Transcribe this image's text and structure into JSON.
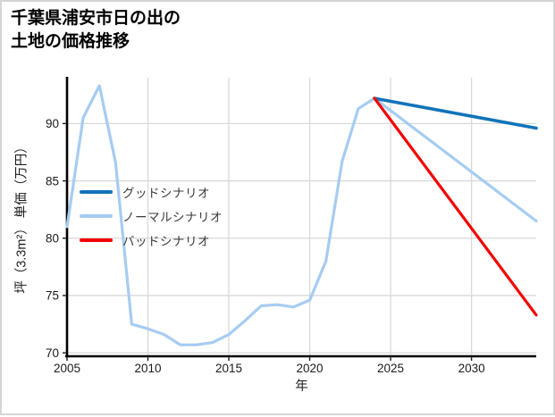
{
  "chart_data": {
    "type": "line",
    "title_lines": [
      "千葉県浦安市日の出の",
      "土地の価格推移"
    ],
    "xlabel": "年",
    "ylabel": "坪（3.3m²） 単価（万円）",
    "x_ticks": [
      2005,
      2010,
      2015,
      2020,
      2025,
      2030
    ],
    "y_ticks": [
      70,
      75,
      80,
      85,
      90
    ],
    "xlim": [
      2005,
      2034
    ],
    "ylim": [
      69.7,
      94.0
    ],
    "grid": true,
    "grid_color": "#d9d9d9",
    "axis_color": "#000000",
    "tick_label_color": "#1a1a1a",
    "legend_position": "center-left",
    "legend_text_color": "#3a3a3a",
    "series": [
      {
        "name": "グッドシナリオ",
        "color": "#1073b9",
        "width": 3.6,
        "x": [
          2024,
          2034
        ],
        "y": [
          92.2,
          89.6
        ]
      },
      {
        "name": "ノーマルシナリオ",
        "color": "#a6ccf2",
        "width": 3.2,
        "x": [
          2005,
          2006,
          2007,
          2008,
          2009,
          2010,
          2011,
          2012,
          2013,
          2014,
          2015,
          2016,
          2017,
          2018,
          2019,
          2020,
          2021,
          2022,
          2023,
          2024,
          2034
        ],
        "y": [
          81.0,
          90.5,
          93.3,
          86.6,
          72.5,
          72.1,
          71.6,
          70.7,
          70.7,
          70.9,
          71.6,
          72.8,
          74.1,
          74.2,
          74.0,
          74.6,
          78.0,
          86.7,
          91.3,
          92.2,
          81.5
        ]
      },
      {
        "name": "バッドシナリオ",
        "color": "#f50000",
        "width": 3.2,
        "x": [
          2024,
          2034
        ],
        "y": [
          92.2,
          73.3
        ]
      }
    ],
    "draw_order": [
      1,
      0,
      2
    ]
  }
}
